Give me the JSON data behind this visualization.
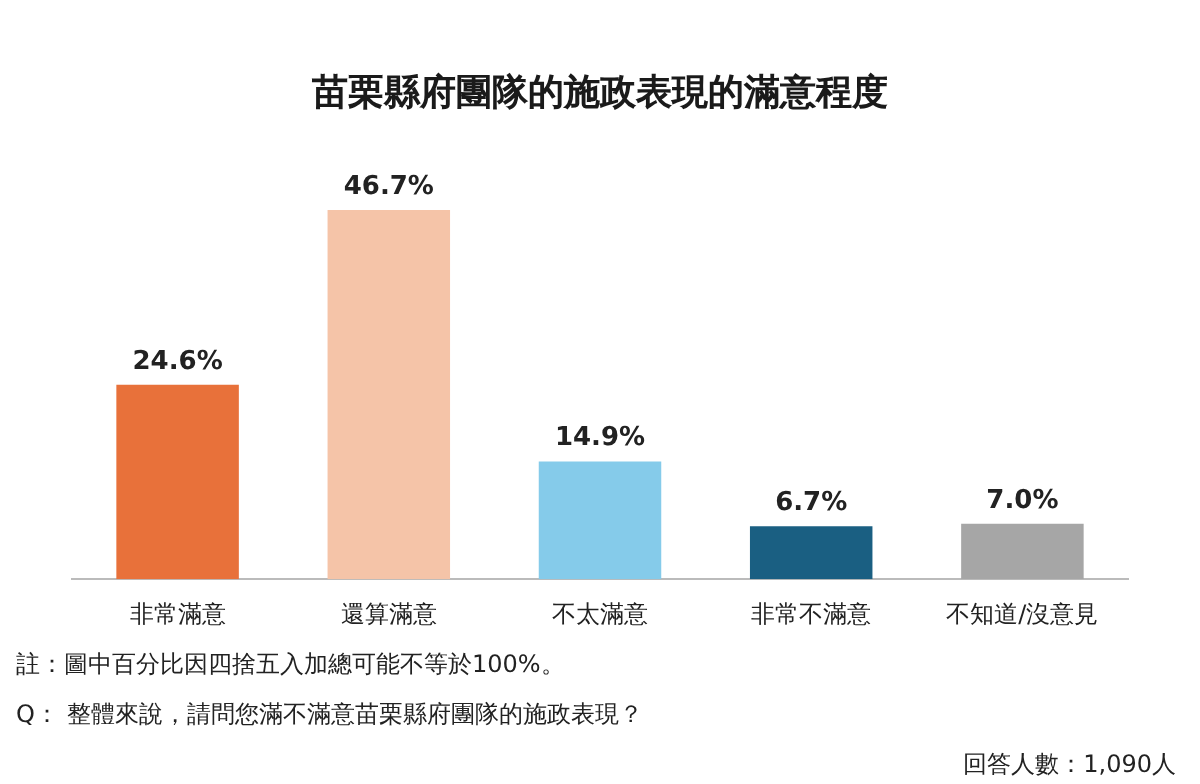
{
  "chart_data": {
    "type": "bar",
    "title": "苗栗縣府團隊的施政表現的滿意程度",
    "categories": [
      "非常滿意",
      "還算滿意",
      "不太滿意",
      "非常不滿意",
      "不知道/沒意見"
    ],
    "values": [
      24.6,
      46.7,
      14.9,
      6.7,
      7.0
    ],
    "colors": [
      "#e8713a",
      "#f5c4a8",
      "#85cbea",
      "#1a5f82",
      "#a6a6a6"
    ],
    "value_labels": [
      "24.6%",
      "46.7%",
      "14.9%",
      "6.7%",
      "7.0%"
    ],
    "grid": false,
    "legend": false,
    "tick_labels": "x",
    "annotations": [
      "註：圖中百分比因四捨五入加總可能不等於100%。",
      "Q： 整體來說，請問您滿不滿意苗栗縣府團隊的施政表現？",
      "回答人數：1,090人"
    ]
  }
}
